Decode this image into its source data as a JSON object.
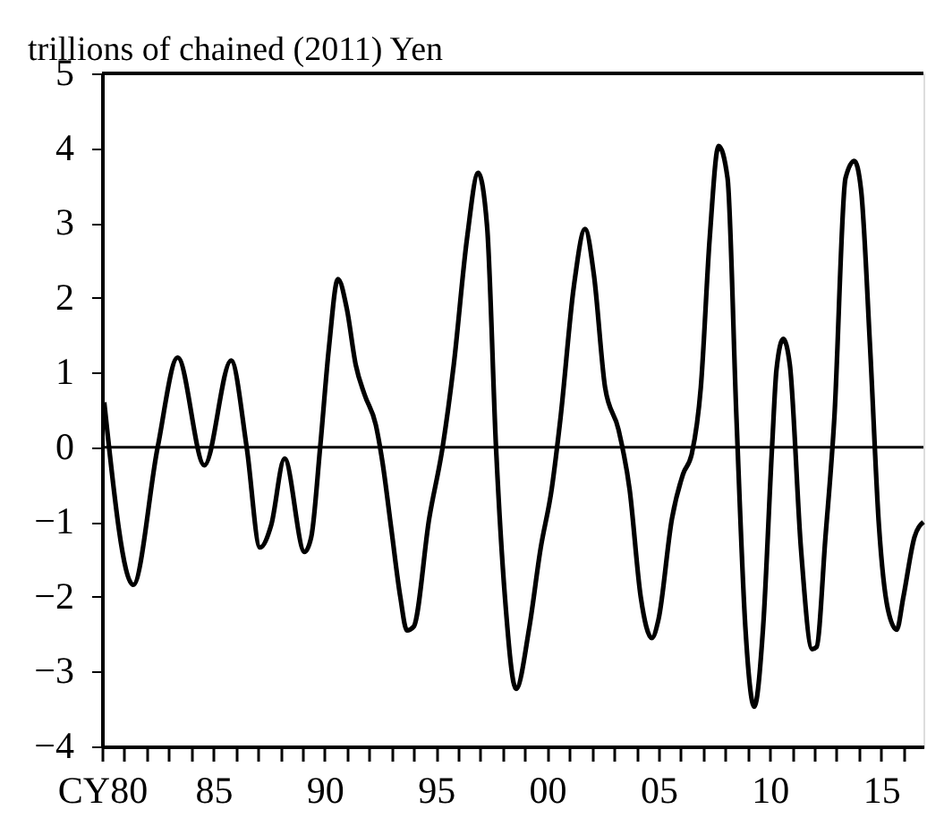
{
  "chart_data": {
    "type": "line",
    "ylabel": "trillions of chained (2011) Yen",
    "x": [
      1980.1,
      1981.4,
      1982.5,
      1983.4,
      1984.6,
      1985.8,
      1986.5,
      1987.1,
      1987.6,
      1988.2,
      1989.1,
      1989.4,
      1989.8,
      1990.2,
      1990.6,
      1991.0,
      1991.4,
      1991.8,
      1992.3,
      1992.6,
      1993.0,
      1993.4,
      1993.7,
      1994.0,
      1994.7,
      1995.3,
      1995.8,
      1996.4,
      1996.9,
      1997.3,
      1997.7,
      1998.1,
      1998.6,
      1999.2,
      1999.7,
      2000.2,
      2000.6,
      2001.2,
      2001.7,
      2002.1,
      2002.6,
      2003.2,
      2003.7,
      2004.2,
      2004.7,
      2005.0,
      2005.6,
      2006.1,
      2006.5,
      2006.9,
      2007.3,
      2007.7,
      2008.1,
      2008.5,
      2008.9,
      2009.3,
      2009.7,
      2010.1,
      2010.3,
      2010.6,
      2010.9,
      2011.4,
      2011.9,
      2012.1,
      2012.5,
      2012.9,
      2013.4,
      2013.8,
      2014.1,
      2014.5,
      2014.9,
      2015.3,
      2015.7,
      2016.0,
      2016.5,
      2016.9
    ],
    "series": [
      {
        "color": "#000000",
        "values": [
          0.6,
          -1.84,
          0,
          1.2,
          -0.24,
          1.16,
          0,
          -1.34,
          -1.04,
          -0.15,
          -1.4,
          -1.2,
          0,
          1.35,
          2.25,
          1.85,
          1.1,
          0.7,
          0.3,
          -0.2,
          -1.1,
          -2.0,
          -2.45,
          -2.4,
          -0.95,
          0,
          1.1,
          2.8,
          3.67,
          2.95,
          0,
          -2.0,
          -3.23,
          -2.4,
          -1.36,
          -0.56,
          0.4,
          2.16,
          2.92,
          2.3,
          0.8,
          0.24,
          -0.56,
          -2.0,
          -2.55,
          -2.3,
          -0.96,
          -0.36,
          -0.08,
          0.8,
          2.8,
          4.03,
          3.6,
          0.4,
          -2.4,
          -3.47,
          -2.4,
          0,
          1.04,
          1.45,
          1.1,
          -1.36,
          -2.7,
          -2.67,
          -1.2,
          0.4,
          3.6,
          3.83,
          3.44,
          1.36,
          -1.04,
          -2.16,
          -2.44,
          -2.0,
          -1.2,
          -1.0
        ]
      }
    ],
    "xlim": [
      1980,
      2016.9
    ],
    "xticks": [
      {
        "value": 1980,
        "label": "CY80"
      },
      {
        "value": 1981,
        "label": null
      },
      {
        "value": 1982,
        "label": null
      },
      {
        "value": 1983,
        "label": null
      },
      {
        "value": 1984,
        "label": null
      },
      {
        "value": 1985,
        "label": "85"
      },
      {
        "value": 1986,
        "label": null
      },
      {
        "value": 1987,
        "label": null
      },
      {
        "value": 1988,
        "label": null
      },
      {
        "value": 1989,
        "label": null
      },
      {
        "value": 1990,
        "label": "90"
      },
      {
        "value": 1991,
        "label": null
      },
      {
        "value": 1992,
        "label": null
      },
      {
        "value": 1993,
        "label": null
      },
      {
        "value": 1994,
        "label": null
      },
      {
        "value": 1995,
        "label": "95"
      },
      {
        "value": 1996,
        "label": null
      },
      {
        "value": 1997,
        "label": null
      },
      {
        "value": 1998,
        "label": null
      },
      {
        "value": 1999,
        "label": null
      },
      {
        "value": 2000,
        "label": "00"
      },
      {
        "value": 2001,
        "label": null
      },
      {
        "value": 2002,
        "label": null
      },
      {
        "value": 2003,
        "label": null
      },
      {
        "value": 2004,
        "label": null
      },
      {
        "value": 2005,
        "label": "05"
      },
      {
        "value": 2006,
        "label": null
      },
      {
        "value": 2007,
        "label": null
      },
      {
        "value": 2008,
        "label": null
      },
      {
        "value": 2009,
        "label": null
      },
      {
        "value": 2010,
        "label": "10"
      },
      {
        "value": 2011,
        "label": null
      },
      {
        "value": 2012,
        "label": null
      },
      {
        "value": 2013,
        "label": null
      },
      {
        "value": 2014,
        "label": null
      },
      {
        "value": 2015,
        "label": "15"
      },
      {
        "value": 2016,
        "label": null
      }
    ],
    "ylim": [
      -4,
      5
    ],
    "yticks": [
      -4,
      -3,
      -2,
      -1,
      0,
      1,
      2,
      3,
      4,
      5
    ],
    "ref_lines": [
      {
        "axis": "y",
        "value": 0,
        "color": "#000000"
      }
    ],
    "grid": false,
    "marker": "none",
    "line_style": "solid"
  }
}
